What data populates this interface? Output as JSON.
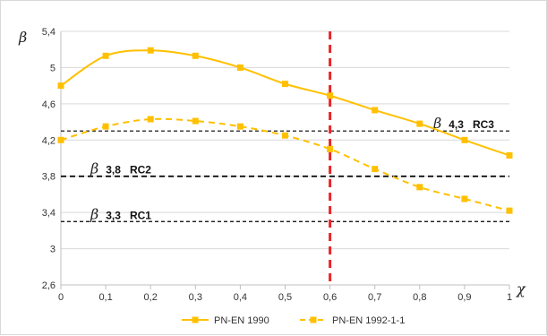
{
  "chart_data": {
    "type": "line",
    "x": [
      0,
      0.1,
      0.2,
      0.3,
      0.4,
      0.5,
      0.6,
      0.7,
      0.8,
      0.9,
      1
    ],
    "x_tick_labels": [
      "0",
      "0,1",
      "0,2",
      "0,3",
      "0,4",
      "0,5",
      "0,6",
      "0,7",
      "0,8",
      "0,9",
      "1"
    ],
    "y_ticks": [
      2.6,
      3,
      3.4,
      3.8,
      4.2,
      4.6,
      5,
      5.4
    ],
    "y_tick_labels": [
      "2,6",
      "3",
      "3,4",
      "3,8",
      "4,2",
      "4,6",
      "5",
      "5,4"
    ],
    "xlim": [
      0,
      1
    ],
    "ylim": [
      2.6,
      5.4
    ],
    "xlabel": "χ",
    "ylabel": "β",
    "grid": "horizontal",
    "legend_position": "bottom",
    "series": [
      {
        "name": "PN-EN 1990",
        "style": "solid",
        "color": "#FFC000",
        "values": [
          4.8,
          5.13,
          5.19,
          5.13,
          5.0,
          4.82,
          4.69,
          4.53,
          4.38,
          4.2,
          4.03
        ]
      },
      {
        "name": "PN-EN 1992-1-1",
        "style": "dashed",
        "color": "#FFC000",
        "values": [
          4.2,
          4.35,
          4.43,
          4.41,
          4.35,
          4.25,
          4.1,
          3.88,
          3.68,
          3.55,
          3.42
        ]
      }
    ],
    "reliability_levels": [
      {
        "symbol": "β",
        "value": 4.3,
        "value_label": "4,3",
        "class_label": "RC3"
      },
      {
        "symbol": "β",
        "value": 3.8,
        "value_label": "3,8",
        "class_label": "RC2"
      },
      {
        "symbol": "β",
        "value": 3.3,
        "value_label": "3,3",
        "class_label": "RC1"
      }
    ],
    "vertical_marker": {
      "x": 0.6,
      "color": "#E8262A"
    },
    "colors": {
      "series": "#FFC000",
      "marker_line": "#E8262A",
      "gridline": "#d9d9d9",
      "level_line": "#000000"
    }
  }
}
